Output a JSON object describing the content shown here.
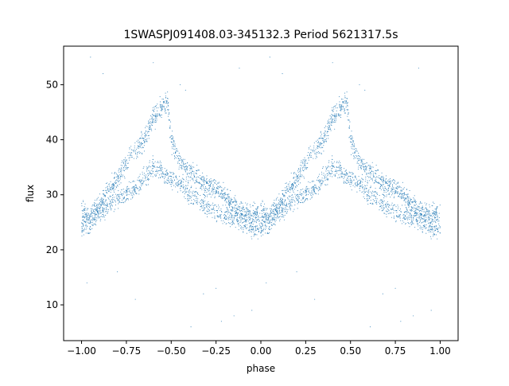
{
  "chart_data": {
    "type": "scatter",
    "title": "1SWASPJ091408.03-345132.3 Period 5621317.5s",
    "xlabel": "phase",
    "ylabel": "flux",
    "xlim": [
      -1.1,
      1.1
    ],
    "ylim": [
      3.5,
      57.0
    ],
    "x_ticks": [
      -1.0,
      -0.75,
      -0.5,
      -0.25,
      0.0,
      0.25,
      0.5,
      0.75,
      1.0
    ],
    "x_tick_labels": [
      "−1.00",
      "−0.75",
      "−0.50",
      "−0.25",
      "0.00",
      "0.25",
      "0.50",
      "0.75",
      "1.00"
    ],
    "y_ticks": [
      10,
      20,
      30,
      40,
      50
    ],
    "y_tick_labels": [
      "10",
      "20",
      "30",
      "40",
      "50"
    ],
    "grid": false,
    "legend": "none",
    "marker_color": "#1f77b4",
    "series": [
      {
        "light_curve_upper_branch": [
          [
            0.0,
            27
          ],
          [
            0.05,
            26
          ],
          [
            0.1,
            28
          ],
          [
            0.15,
            31
          ],
          [
            0.2,
            33
          ],
          [
            0.25,
            36
          ],
          [
            0.3,
            38
          ],
          [
            0.35,
            40
          ],
          [
            0.4,
            44
          ],
          [
            0.45,
            46
          ],
          [
            0.48,
            47
          ],
          [
            0.5,
            40
          ],
          [
            0.55,
            36
          ],
          [
            0.6,
            34
          ],
          [
            0.65,
            33
          ],
          [
            0.7,
            32
          ],
          [
            0.75,
            31
          ],
          [
            0.8,
            30
          ],
          [
            0.85,
            28
          ],
          [
            0.9,
            27
          ],
          [
            0.95,
            26
          ],
          [
            1.0,
            27
          ]
        ],
        "light_curve_lower_branch": [
          [
            0.0,
            24
          ],
          [
            0.05,
            25
          ],
          [
            0.1,
            27
          ],
          [
            0.15,
            28
          ],
          [
            0.2,
            29
          ],
          [
            0.25,
            30
          ],
          [
            0.3,
            31
          ],
          [
            0.35,
            33
          ],
          [
            0.4,
            35
          ],
          [
            0.45,
            34
          ],
          [
            0.5,
            33
          ],
          [
            0.55,
            32
          ],
          [
            0.6,
            30
          ],
          [
            0.65,
            29
          ],
          [
            0.7,
            28
          ],
          [
            0.75,
            27
          ],
          [
            0.8,
            26
          ],
          [
            0.85,
            26
          ],
          [
            0.9,
            25
          ],
          [
            0.95,
            24
          ],
          [
            1.0,
            24
          ]
        ],
        "outliers": [
          [
            0.05,
            55
          ],
          [
            0.12,
            52
          ],
          [
            0.4,
            54
          ],
          [
            0.55,
            50
          ],
          [
            0.58,
            49
          ],
          [
            0.61,
            6
          ],
          [
            0.68,
            12
          ],
          [
            0.75,
            13
          ],
          [
            0.85,
            8
          ],
          [
            0.95,
            9
          ],
          [
            0.03,
            14
          ],
          [
            0.2,
            16
          ],
          [
            0.3,
            11
          ],
          [
            0.78,
            7
          ],
          [
            0.88,
            53
          ]
        ]
      }
    ]
  }
}
